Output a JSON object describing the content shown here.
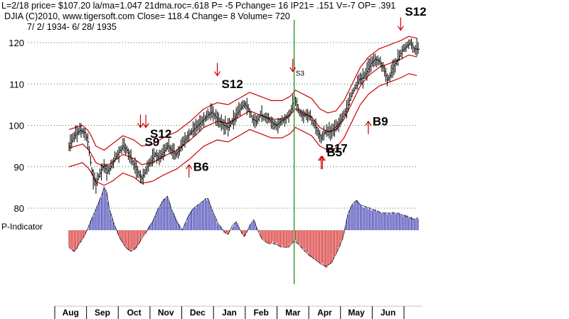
{
  "header": {
    "line1": "L=2/18  price= $107.20  la/ma=1.047 21dma.roc=.618 P= -5 Pchange=  16 IP21= .151 V=-7 OP= .391",
    "line2": "DJIA    (C)2010, www.tigersoft.com      Close=  118.4  Change=  8 Volume=  720",
    "line3": "7/ 2/ 1934-  6/ 28/ 1935"
  },
  "indicator_label": "P-Indicator",
  "colors": {
    "price": "#000000",
    "band": "#cc0000",
    "ind_pos": "#1a1aa6",
    "ind_neg": "#cc0000",
    "grid": "#2a8a2a",
    "vline": "#1f8f1f",
    "arrow": "#cc0000"
  },
  "chart_data": {
    "type": "line",
    "title": "DJIA 7/2/1934 - 6/28/1935",
    "xlabel": "",
    "ylabel": "",
    "ylim": [
      76,
      124
    ],
    "yticks": [
      80,
      90,
      100,
      110,
      120
    ],
    "months": [
      "Aug",
      "Sep",
      "Oct",
      "Nov",
      "Dec",
      "Jan",
      "Feb",
      "Mar",
      "Apr",
      "May",
      "Jun"
    ],
    "total_days": 260,
    "marked_day": 167,
    "price": [
      [
        0,
        95.0
      ],
      [
        4,
        97.5
      ],
      [
        8,
        98.8
      ],
      [
        12,
        98.2
      ],
      [
        14,
        96.0
      ],
      [
        16,
        91.0
      ],
      [
        18,
        87.0
      ],
      [
        20,
        86.0
      ],
      [
        23,
        88.5
      ],
      [
        26,
        90.5
      ],
      [
        28,
        88.5
      ],
      [
        31,
        90.0
      ],
      [
        34,
        92.0
      ],
      [
        37,
        93.5
      ],
      [
        40,
        95.0
      ],
      [
        43,
        94.0
      ],
      [
        46,
        92.0
      ],
      [
        49,
        90.0
      ],
      [
        52,
        88.0
      ],
      [
        54,
        87.2
      ],
      [
        56,
        88.5
      ],
      [
        58,
        90.0
      ],
      [
        61,
        91.5
      ],
      [
        64,
        93.0
      ],
      [
        67,
        92.0
      ],
      [
        70,
        93.5
      ],
      [
        73,
        95.0
      ],
      [
        76,
        94.0
      ],
      [
        79,
        93.0
      ],
      [
        82,
        94.0
      ],
      [
        85,
        96.0
      ],
      [
        88,
        97.5
      ],
      [
        91,
        98.5
      ],
      [
        94,
        99.5
      ],
      [
        97,
        100.5
      ],
      [
        100,
        101.5
      ],
      [
        103,
        102.5
      ],
      [
        106,
        103.2
      ],
      [
        109,
        102.0
      ],
      [
        112,
        101.0
      ],
      [
        115,
        100.0
      ],
      [
        118,
        99.5
      ],
      [
        121,
        101.0
      ],
      [
        124,
        102.5
      ],
      [
        127,
        104.0
      ],
      [
        130,
        105.2
      ],
      [
        133,
        104.0
      ],
      [
        136,
        101.5
      ],
      [
        139,
        101.0
      ],
      [
        142,
        102.5
      ],
      [
        145,
        102.0
      ],
      [
        148,
        101.5
      ],
      [
        151,
        100.5
      ],
      [
        154,
        100.0
      ],
      [
        157,
        101.0
      ],
      [
        160,
        101.5
      ],
      [
        163,
        102.5
      ],
      [
        165,
        104.0
      ],
      [
        167,
        106.5
      ],
      [
        169,
        105.0
      ],
      [
        171,
        103.0
      ],
      [
        173,
        102.5
      ],
      [
        176,
        102.5
      ],
      [
        179,
        102.0
      ],
      [
        181,
        100.5
      ],
      [
        183,
        99.5
      ],
      [
        185,
        98.0
      ],
      [
        187,
        97.0
      ],
      [
        189,
        98.0
      ],
      [
        191,
        98.5
      ],
      [
        194,
        98.5
      ],
      [
        197,
        99.5
      ],
      [
        200,
        100.5
      ],
      [
        203,
        102.0
      ],
      [
        206,
        104.0
      ],
      [
        209,
        107.0
      ],
      [
        212,
        109.0
      ],
      [
        215,
        111.0
      ],
      [
        218,
        111.5
      ],
      [
        221,
        113.0
      ],
      [
        224,
        115.0
      ],
      [
        227,
        116.0
      ],
      [
        230,
        115.5
      ],
      [
        233,
        114.0
      ],
      [
        236,
        111.0
      ],
      [
        238,
        112.0
      ],
      [
        241,
        114.5
      ],
      [
        244,
        116.0
      ],
      [
        247,
        118.0
      ],
      [
        250,
        119.0
      ],
      [
        253,
        120.0
      ],
      [
        256,
        118.5
      ],
      [
        259,
        118.4
      ]
    ],
    "upper_band": [
      [
        0,
        99.0
      ],
      [
        10,
        100.0
      ],
      [
        15,
        98.5
      ],
      [
        20,
        95.0
      ],
      [
        26,
        94.0
      ],
      [
        32,
        95.5
      ],
      [
        40,
        97.5
      ],
      [
        48,
        96.5
      ],
      [
        54,
        95.0
      ],
      [
        62,
        95.5
      ],
      [
        70,
        97.0
      ],
      [
        80,
        98.5
      ],
      [
        90,
        101.0
      ],
      [
        100,
        104.0
      ],
      [
        110,
        105.5
      ],
      [
        118,
        105.0
      ],
      [
        126,
        106.5
      ],
      [
        134,
        108.0
      ],
      [
        142,
        107.0
      ],
      [
        150,
        106.0
      ],
      [
        158,
        106.0
      ],
      [
        164,
        107.0
      ],
      [
        168,
        108.5
      ],
      [
        174,
        107.5
      ],
      [
        180,
        106.5
      ],
      [
        186,
        104.0
      ],
      [
        192,
        103.0
      ],
      [
        198,
        103.5
      ],
      [
        204,
        106.0
      ],
      [
        210,
        110.0
      ],
      [
        216,
        114.0
      ],
      [
        222,
        116.5
      ],
      [
        230,
        118.5
      ],
      [
        238,
        119.5
      ],
      [
        246,
        120.5
      ],
      [
        252,
        121.5
      ],
      [
        259,
        121.0
      ]
    ],
    "middle_band": [
      [
        0,
        94.5
      ],
      [
        10,
        95.5
      ],
      [
        15,
        94.0
      ],
      [
        20,
        91.0
      ],
      [
        26,
        90.0
      ],
      [
        32,
        91.0
      ],
      [
        40,
        93.0
      ],
      [
        48,
        92.0
      ],
      [
        54,
        90.5
      ],
      [
        62,
        91.0
      ],
      [
        70,
        92.5
      ],
      [
        80,
        94.0
      ],
      [
        90,
        96.5
      ],
      [
        100,
        99.5
      ],
      [
        110,
        101.0
      ],
      [
        118,
        100.5
      ],
      [
        126,
        102.0
      ],
      [
        134,
        103.5
      ],
      [
        142,
        102.5
      ],
      [
        150,
        101.5
      ],
      [
        158,
        101.5
      ],
      [
        164,
        102.5
      ],
      [
        168,
        104.0
      ],
      [
        174,
        103.0
      ],
      [
        180,
        102.0
      ],
      [
        186,
        99.5
      ],
      [
        192,
        98.5
      ],
      [
        198,
        99.0
      ],
      [
        204,
        101.5
      ],
      [
        210,
        105.5
      ],
      [
        216,
        109.5
      ],
      [
        222,
        112.0
      ],
      [
        230,
        114.0
      ],
      [
        238,
        115.0
      ],
      [
        246,
        116.0
      ],
      [
        252,
        117.0
      ],
      [
        259,
        116.5
      ]
    ],
    "lower_band": [
      [
        0,
        90.0
      ],
      [
        10,
        91.0
      ],
      [
        15,
        89.5
      ],
      [
        20,
        86.5
      ],
      [
        26,
        85.5
      ],
      [
        32,
        86.5
      ],
      [
        40,
        88.5
      ],
      [
        48,
        87.5
      ],
      [
        54,
        86.0
      ],
      [
        62,
        86.5
      ],
      [
        70,
        88.0
      ],
      [
        80,
        89.5
      ],
      [
        90,
        92.0
      ],
      [
        100,
        95.0
      ],
      [
        110,
        96.5
      ],
      [
        118,
        96.0
      ],
      [
        126,
        97.5
      ],
      [
        134,
        99.0
      ],
      [
        142,
        98.0
      ],
      [
        150,
        97.0
      ],
      [
        158,
        97.0
      ],
      [
        164,
        98.0
      ],
      [
        168,
        99.5
      ],
      [
        174,
        98.5
      ],
      [
        180,
        97.5
      ],
      [
        186,
        95.0
      ],
      [
        192,
        94.0
      ],
      [
        198,
        94.5
      ],
      [
        204,
        97.0
      ],
      [
        210,
        101.0
      ],
      [
        216,
        105.0
      ],
      [
        222,
        107.5
      ],
      [
        230,
        109.5
      ],
      [
        238,
        110.5
      ],
      [
        246,
        111.5
      ],
      [
        252,
        112.5
      ],
      [
        259,
        112.0
      ]
    ],
    "indicator": [
      [
        0,
        -8
      ],
      [
        4,
        -10
      ],
      [
        8,
        -6
      ],
      [
        12,
        -2
      ],
      [
        16,
        4
      ],
      [
        20,
        10
      ],
      [
        24,
        16
      ],
      [
        26,
        20
      ],
      [
        28,
        18
      ],
      [
        30,
        10
      ],
      [
        34,
        2
      ],
      [
        38,
        -4
      ],
      [
        42,
        -8
      ],
      [
        46,
        -10
      ],
      [
        50,
        -8
      ],
      [
        54,
        -4
      ],
      [
        58,
        0
      ],
      [
        62,
        4
      ],
      [
        66,
        10
      ],
      [
        70,
        14
      ],
      [
        73,
        16
      ],
      [
        76,
        10
      ],
      [
        80,
        4
      ],
      [
        84,
        0
      ],
      [
        88,
        6
      ],
      [
        92,
        10
      ],
      [
        96,
        12
      ],
      [
        100,
        14
      ],
      [
        103,
        15
      ],
      [
        106,
        10
      ],
      [
        110,
        4
      ],
      [
        114,
        0
      ],
      [
        118,
        -2
      ],
      [
        121,
        2
      ],
      [
        124,
        4
      ],
      [
        127,
        0
      ],
      [
        130,
        -3
      ],
      [
        134,
        2
      ],
      [
        137,
        5
      ],
      [
        140,
        0
      ],
      [
        143,
        -4
      ],
      [
        147,
        -6
      ],
      [
        151,
        -6
      ],
      [
        155,
        -7
      ],
      [
        159,
        -8
      ],
      [
        163,
        -8
      ],
      [
        167,
        -5
      ],
      [
        171,
        -7
      ],
      [
        175,
        -10
      ],
      [
        179,
        -12
      ],
      [
        183,
        -14
      ],
      [
        187,
        -16
      ],
      [
        191,
        -17
      ],
      [
        195,
        -15
      ],
      [
        199,
        -10
      ],
      [
        203,
        -4
      ],
      [
        205,
        2
      ],
      [
        207,
        8
      ],
      [
        210,
        12
      ],
      [
        213,
        14
      ],
      [
        216,
        12
      ],
      [
        220,
        11
      ],
      [
        224,
        10
      ],
      [
        228,
        9
      ],
      [
        232,
        8
      ],
      [
        236,
        8
      ],
      [
        240,
        8
      ],
      [
        244,
        8
      ],
      [
        248,
        7
      ],
      [
        252,
        6
      ],
      [
        256,
        5
      ],
      [
        259,
        6
      ]
    ],
    "indicator_ylim": [
      -20,
      20
    ],
    "signals": [
      {
        "label": "S9",
        "day": 53,
        "y": 95,
        "dir": "down",
        "arrowY": 99.5
      },
      {
        "label": "S12",
        "day": 57,
        "y": 97,
        "dir": "down",
        "arrowY": 99.5
      },
      {
        "label": "S12",
        "day": 110,
        "y": 109,
        "dir": "down",
        "arrowY": 112
      },
      {
        "label": "S3",
        "day": 166,
        "y": 112,
        "dir": "down",
        "arrowY": 113
      },
      {
        "label": "B6",
        "day": 89,
        "y": 89,
        "dir": "up",
        "arrowY": 90.5
      },
      {
        "label": "B17",
        "day": 187,
        "y": 93.5,
        "dir": "up",
        "arrowY": 92.5
      },
      {
        "label": "B5",
        "day": 188,
        "y": 92.5,
        "dir": "up",
        "arrowY": 92.5
      },
      {
        "label": "B9",
        "day": 222,
        "y": 100,
        "dir": "up",
        "arrowY": 101
      },
      {
        "label": "S12",
        "day": 246,
        "y": 126.5,
        "dir": "down",
        "arrowY": 123
      }
    ]
  }
}
